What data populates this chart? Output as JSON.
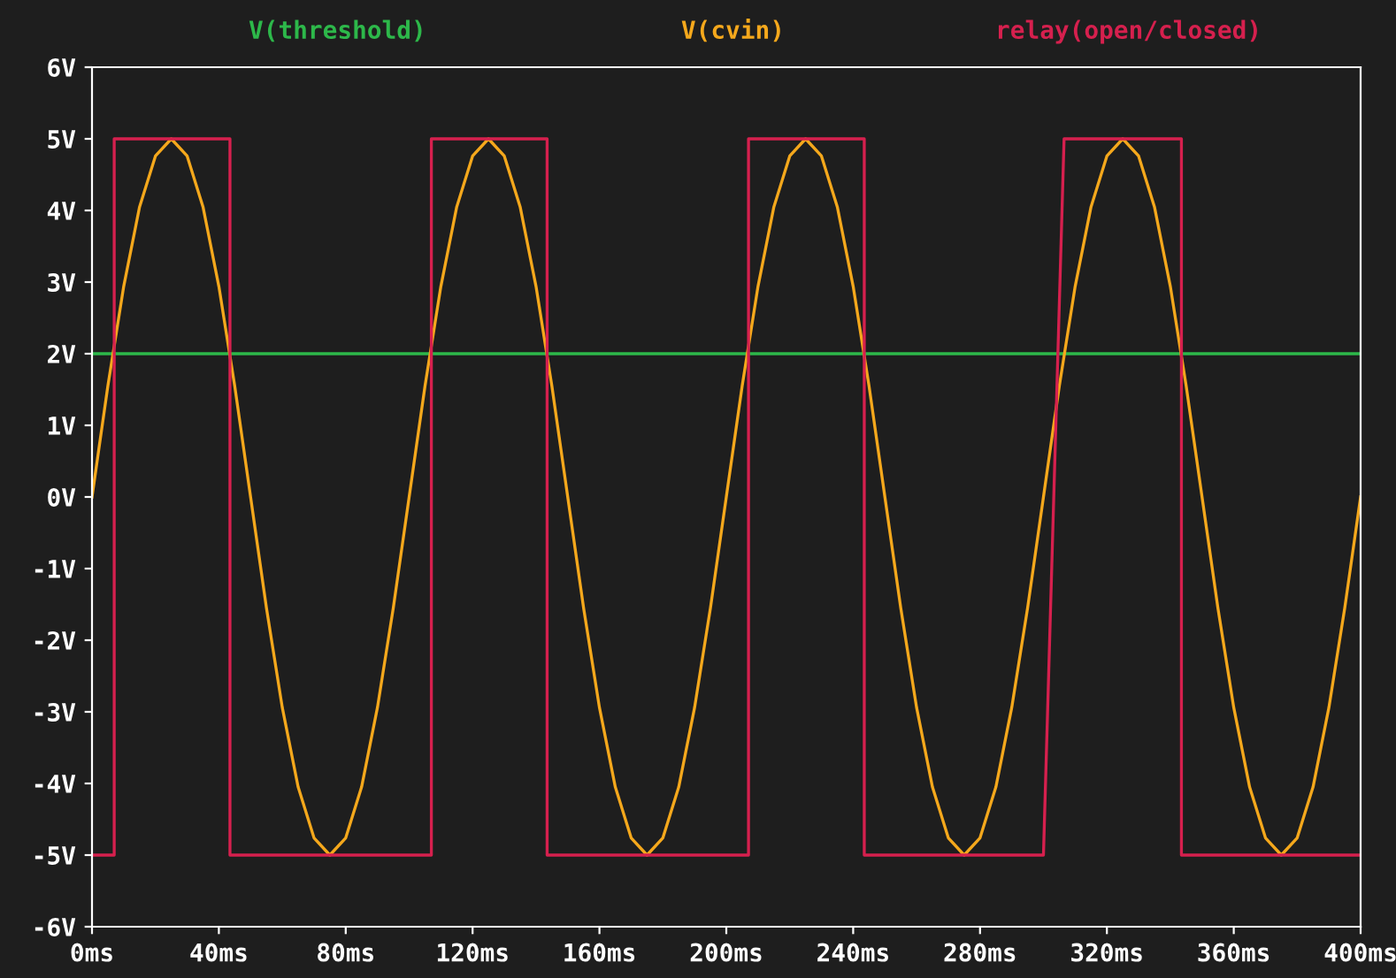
{
  "chart_data": {
    "type": "line",
    "legend": "top",
    "grid": false,
    "line_style": "solid",
    "marker": "none",
    "xlim": [
      0,
      400
    ],
    "ylim": [
      -6,
      6
    ],
    "xticks": [
      {
        "value": 0,
        "label": "0ms"
      },
      {
        "value": 40,
        "label": "40ms"
      },
      {
        "value": 80,
        "label": "80ms"
      },
      {
        "value": 120,
        "label": "120ms"
      },
      {
        "value": 160,
        "label": "160ms"
      },
      {
        "value": 200,
        "label": "200ms"
      },
      {
        "value": 240,
        "label": "240ms"
      },
      {
        "value": 280,
        "label": "280ms"
      },
      {
        "value": 320,
        "label": "320ms"
      },
      {
        "value": 360,
        "label": "360ms"
      },
      {
        "value": 400,
        "label": "400ms"
      }
    ],
    "yticks": [
      {
        "value": 6,
        "label": "6V"
      },
      {
        "value": 5,
        "label": "5V"
      },
      {
        "value": 4,
        "label": "4V"
      },
      {
        "value": 3,
        "label": "3V"
      },
      {
        "value": 2,
        "label": "2V"
      },
      {
        "value": 1,
        "label": "1V"
      },
      {
        "value": 0,
        "label": "0V"
      },
      {
        "value": -1,
        "label": "-1V"
      },
      {
        "value": -2,
        "label": "-2V"
      },
      {
        "value": -3,
        "label": "-3V"
      },
      {
        "value": -4,
        "label": "-4V"
      },
      {
        "value": -5,
        "label": "-5V"
      },
      {
        "value": -6,
        "label": "-6V"
      }
    ],
    "series": [
      {
        "name": "V(threshold)",
        "color": "#2db84a",
        "x": [
          0,
          400
        ],
        "values": [
          2,
          2
        ]
      },
      {
        "name": "V(cvin)",
        "color": "#f5a81c",
        "x": [
          0,
          5,
          10,
          15,
          20,
          25,
          30,
          35,
          40,
          45,
          50,
          55,
          60,
          65,
          70,
          75,
          80,
          85,
          90,
          95,
          100,
          105,
          110,
          115,
          120,
          125,
          130,
          135,
          140,
          145,
          150,
          155,
          160,
          165,
          170,
          175,
          180,
          185,
          190,
          195,
          200,
          205,
          210,
          215,
          220,
          225,
          230,
          235,
          240,
          245,
          250,
          255,
          260,
          265,
          270,
          275,
          280,
          285,
          290,
          295,
          300,
          305,
          310,
          315,
          320,
          325,
          330,
          335,
          340,
          345,
          350,
          355,
          360,
          365,
          370,
          375,
          380,
          385,
          390,
          395,
          400
        ],
        "values": [
          0,
          1.55,
          2.94,
          4.05,
          4.76,
          5,
          4.76,
          4.05,
          2.94,
          1.55,
          0,
          -1.55,
          -2.94,
          -4.05,
          -4.76,
          -5,
          -4.76,
          -4.05,
          -2.94,
          -1.55,
          0,
          1.55,
          2.94,
          4.05,
          4.76,
          5,
          4.76,
          4.05,
          2.94,
          1.55,
          0,
          -1.55,
          -2.94,
          -4.05,
          -4.76,
          -5,
          -4.76,
          -4.05,
          -2.94,
          -1.55,
          0,
          1.55,
          2.94,
          4.05,
          4.76,
          5,
          4.76,
          4.05,
          2.94,
          1.55,
          0,
          -1.55,
          -2.94,
          -4.05,
          -4.76,
          -5,
          -4.76,
          -4.05,
          -2.94,
          -1.55,
          0,
          1.55,
          2.94,
          4.05,
          4.76,
          5,
          4.76,
          4.05,
          2.94,
          1.55,
          0,
          -1.55,
          -2.94,
          -4.05,
          -4.76,
          -5,
          -4.76,
          -4.05,
          -2.94,
          -1.55,
          0
        ]
      },
      {
        "name": "relay(open/closed)",
        "color": "#d6204e",
        "x": [
          0,
          7,
          7,
          43.5,
          43.5,
          107,
          107,
          143.5,
          143.5,
          207,
          207,
          243.5,
          243.5,
          300,
          306.5,
          343.5,
          343.5,
          400
        ],
        "values": [
          -5,
          -5,
          5,
          5,
          -5,
          -5,
          5,
          5,
          -5,
          -5,
          5,
          5,
          -5,
          -5,
          5,
          5,
          -5,
          -5
        ]
      }
    ]
  }
}
